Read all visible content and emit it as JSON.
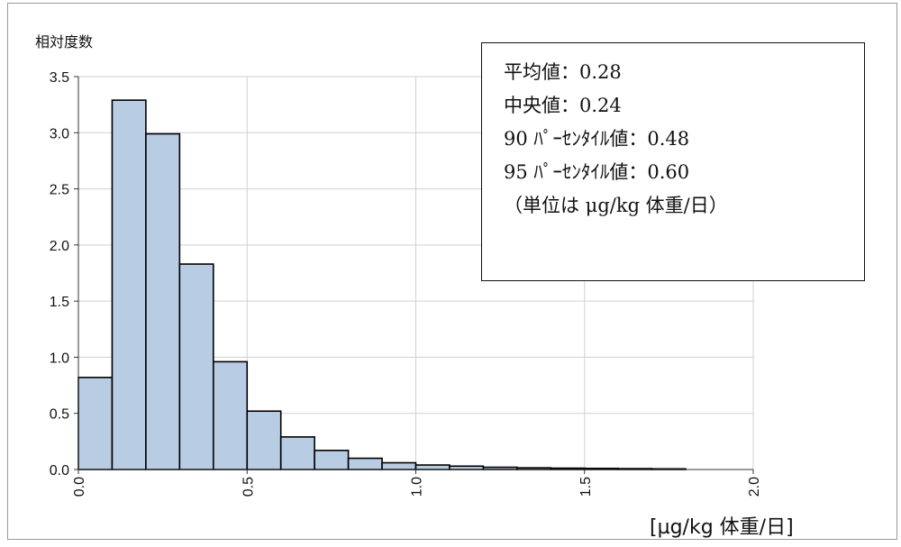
{
  "chart_data": {
    "type": "bar",
    "title": "",
    "ylabel": "相対度数",
    "xlabel": "[µg/kg 体重/日]",
    "xlim": [
      0,
      2.0
    ],
    "ylim": [
      0,
      3.5
    ],
    "xticks": [
      "0.0",
      "0.5",
      "1.0",
      "1.5",
      "2.0"
    ],
    "yticks": [
      "0.0",
      "0.5",
      "1.0",
      "1.5",
      "2.0",
      "2.5",
      "3.0",
      "3.5"
    ],
    "grid": true,
    "bin_width": 0.1,
    "bins": [
      {
        "x0": 0.0,
        "x1": 0.1,
        "value": 0.82
      },
      {
        "x0": 0.1,
        "x1": 0.2,
        "value": 3.29
      },
      {
        "x0": 0.2,
        "x1": 0.3,
        "value": 2.99
      },
      {
        "x0": 0.3,
        "x1": 0.4,
        "value": 1.83
      },
      {
        "x0": 0.4,
        "x1": 0.5,
        "value": 0.96
      },
      {
        "x0": 0.5,
        "x1": 0.6,
        "value": 0.52
      },
      {
        "x0": 0.6,
        "x1": 0.7,
        "value": 0.29
      },
      {
        "x0": 0.7,
        "x1": 0.8,
        "value": 0.17
      },
      {
        "x0": 0.8,
        "x1": 0.9,
        "value": 0.1
      },
      {
        "x0": 0.9,
        "x1": 1.0,
        "value": 0.06
      },
      {
        "x0": 1.0,
        "x1": 1.1,
        "value": 0.04
      },
      {
        "x0": 1.1,
        "x1": 1.2,
        "value": 0.03
      },
      {
        "x0": 1.2,
        "x1": 1.3,
        "value": 0.02
      },
      {
        "x0": 1.3,
        "x1": 1.4,
        "value": 0.015
      },
      {
        "x0": 1.4,
        "x1": 1.5,
        "value": 0.012
      },
      {
        "x0": 1.5,
        "x1": 1.6,
        "value": 0.01
      },
      {
        "x0": 1.6,
        "x1": 1.7,
        "value": 0.008
      },
      {
        "x0": 1.7,
        "x1": 1.8,
        "value": 0.006
      }
    ],
    "bar_color": "#b8cce4",
    "bar_edge_color": "#000000",
    "grid_color": "#d0d0d0",
    "annotations": [
      "平均値：0.28",
      "中央値：0.24",
      "90 ﾊﾟｰｾﾝﾀｲﾙ値：0.48",
      "95 ﾊﾟｰｾﾝﾀｲﾙ値：0.60",
      "（単位は μg/kg  体重/日）"
    ]
  }
}
